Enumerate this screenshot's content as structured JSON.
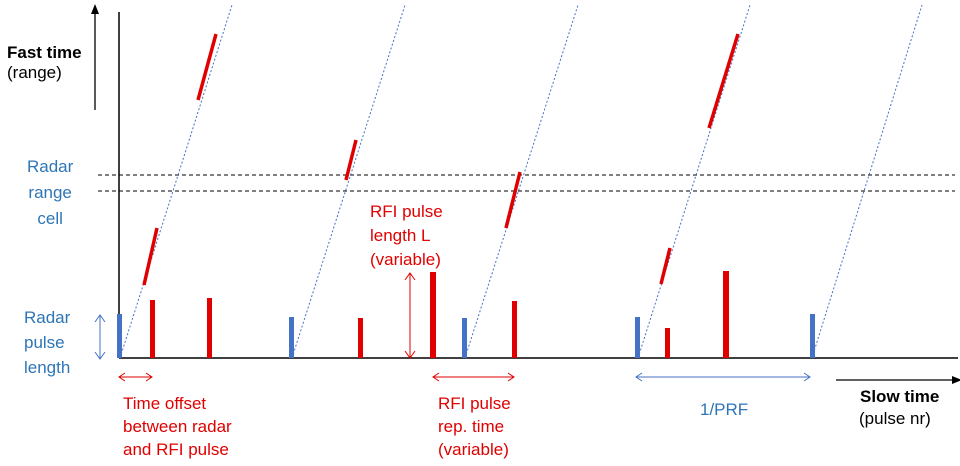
{
  "colors": {
    "radar": "#4472c4",
    "rfi": "#e00000",
    "axis": "#000000",
    "label_blue": "#2e75b6",
    "trace": "#4472c4"
  },
  "labels": {
    "fast_time_title": "Fast time",
    "fast_time_sub": "(range)",
    "slow_time_title": "Slow time",
    "slow_time_sub": "(pulse nr)",
    "radar_range_cell": "Radar\nrange\ncell",
    "radar_pulse_length": "Radar\npulse\nlength",
    "rfi_pulse_length": "RFI pulse\nlength L\n(variable)",
    "time_offset": "Time offset\nbetween radar\nand RFI pulse",
    "rfi_rep_time": "RFI pulse\nrep. time\n(variable)",
    "prf": "1/PRF"
  }
}
